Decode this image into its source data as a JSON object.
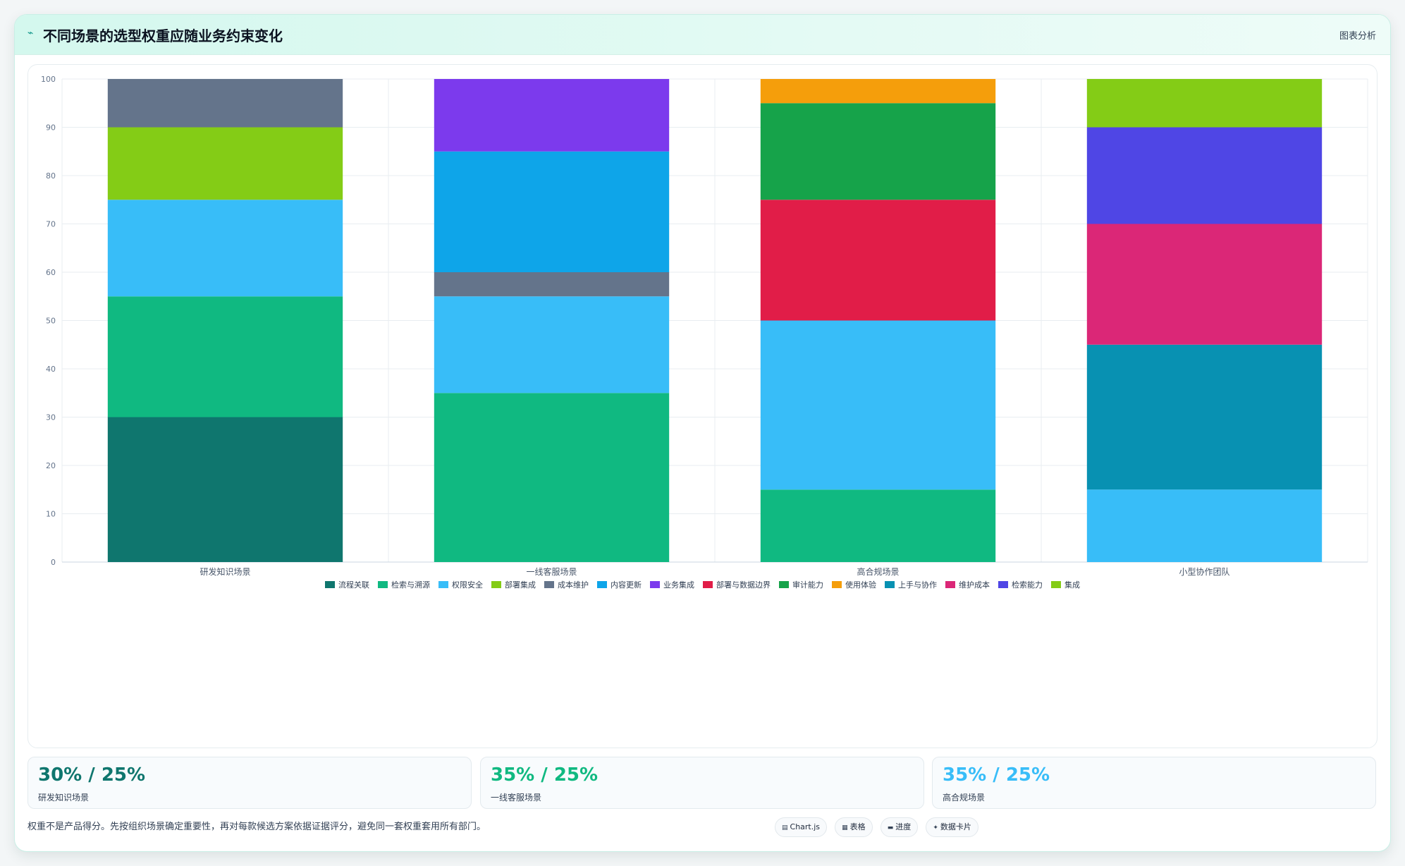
{
  "header": {
    "title": "不同场景的选型权重应随业务约束变化",
    "tag": "图表分析"
  },
  "chart_data": {
    "type": "bar",
    "stacked": true,
    "categories": [
      "研发知识场景",
      "一线客服场景",
      "高合规场景",
      "小型协作团队"
    ],
    "ylim": [
      0,
      100
    ],
    "yticks": [
      0,
      10,
      20,
      30,
      40,
      50,
      60,
      70,
      80,
      90,
      100
    ],
    "grid": true,
    "legend_position": "bottom",
    "series": [
      {
        "name": "流程关联",
        "color": "#0f766e",
        "values": [
          30,
          0,
          0,
          0
        ]
      },
      {
        "name": "检索与溯源",
        "color": "#10b981",
        "values": [
          25,
          35,
          15,
          0
        ]
      },
      {
        "name": "权限安全",
        "color": "#38bdf8",
        "values": [
          20,
          20,
          35,
          15
        ]
      },
      {
        "name": "部署集成",
        "color": "#84cc16",
        "values": [
          15,
          0,
          0,
          0
        ]
      },
      {
        "name": "成本维护",
        "color": "#64748b",
        "values": [
          10,
          5,
          0,
          0
        ]
      },
      {
        "name": "内容更新",
        "color": "#0ea5e9",
        "values": [
          0,
          25,
          0,
          0
        ]
      },
      {
        "name": "业务集成",
        "color": "#7c3aed",
        "values": [
          0,
          15,
          0,
          0
        ]
      },
      {
        "name": "部署与数据边界",
        "color": "#e11d48",
        "values": [
          0,
          0,
          25,
          0
        ]
      },
      {
        "name": "审计能力",
        "color": "#16a34a",
        "values": [
          0,
          0,
          20,
          0
        ]
      },
      {
        "name": "使用体验",
        "color": "#f59e0b",
        "values": [
          0,
          0,
          5,
          0
        ]
      },
      {
        "name": "上手与协作",
        "color": "#0891b2",
        "values": [
          0,
          0,
          0,
          30
        ]
      },
      {
        "name": "维护成本",
        "color": "#db2777",
        "values": [
          0,
          0,
          0,
          25
        ]
      },
      {
        "name": "检索能力",
        "color": "#4f46e5",
        "values": [
          0,
          0,
          0,
          20
        ]
      },
      {
        "name": "集成",
        "color": "#84cc16",
        "values": [
          0,
          0,
          0,
          10
        ]
      }
    ]
  },
  "stats": [
    {
      "value": "30% / 25%",
      "label": "研发知识场景",
      "color": "#0f766e"
    },
    {
      "value": "35% / 25%",
      "label": "一线客服场景",
      "color": "#10b981"
    },
    {
      "value": "35% / 25%",
      "label": "高合规场景",
      "color": "#38bdf8"
    }
  ],
  "footer": {
    "note": "权重不是产品得分。先按组织场景确定重要性，再对每款候选方案依据证据评分，避免同一套权重套用所有部门。"
  },
  "chips": [
    {
      "icon": "▤",
      "icon_name": "chart-icon",
      "label": "Chart.js"
    },
    {
      "icon": "▦",
      "icon_name": "table-icon",
      "label": "表格"
    },
    {
      "icon": "▬",
      "icon_name": "progress-icon",
      "label": "进度"
    },
    {
      "icon": "✦",
      "icon_name": "card-icon",
      "label": "数据卡片"
    }
  ]
}
